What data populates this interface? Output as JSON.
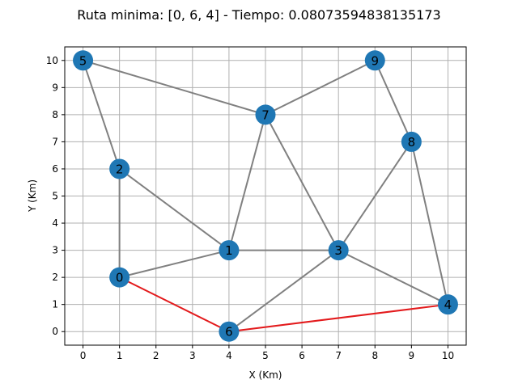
{
  "chart_data": {
    "type": "scatter",
    "title": "Ruta minima: [0, 6, 4] - Tiempo: 0.08073594838135173",
    "xlabel": "X (Km)",
    "ylabel": "Y (Km)",
    "x_ticks": [
      "0",
      "1",
      "2",
      "3",
      "4",
      "5",
      "6",
      "7",
      "8",
      "9",
      "10"
    ],
    "y_ticks": [
      "0",
      "1",
      "2",
      "3",
      "4",
      "5",
      "6",
      "7",
      "8",
      "9",
      "10"
    ],
    "xlim": [
      -0.5,
      10.5
    ],
    "ylim": [
      -0.5,
      10.5
    ],
    "grid": true,
    "nodes": [
      {
        "id": "0",
        "x": 1,
        "y": 2
      },
      {
        "id": "1",
        "x": 4,
        "y": 3
      },
      {
        "id": "2",
        "x": 1,
        "y": 6
      },
      {
        "id": "3",
        "x": 7,
        "y": 3
      },
      {
        "id": "4",
        "x": 10,
        "y": 1
      },
      {
        "id": "5",
        "x": 0,
        "y": 10
      },
      {
        "id": "6",
        "x": 4,
        "y": 0
      },
      {
        "id": "7",
        "x": 5,
        "y": 8
      },
      {
        "id": "8",
        "x": 9,
        "y": 7
      },
      {
        "id": "9",
        "x": 8,
        "y": 10
      }
    ],
    "edges": [
      [
        "0",
        "1"
      ],
      [
        "0",
        "2"
      ],
      [
        "2",
        "5"
      ],
      [
        "2",
        "1"
      ],
      [
        "5",
        "7"
      ],
      [
        "7",
        "1"
      ],
      [
        "7",
        "9"
      ],
      [
        "7",
        "3"
      ],
      [
        "9",
        "8"
      ],
      [
        "8",
        "3"
      ],
      [
        "8",
        "4"
      ],
      [
        "1",
        "3"
      ],
      [
        "3",
        "4"
      ],
      [
        "3",
        "6"
      ]
    ],
    "route": [
      "0",
      "6",
      "4"
    ],
    "colors": {
      "node": "#1f77b4",
      "edge": "#808080",
      "route": "#e31a1c",
      "grid": "#b0b0b0"
    }
  }
}
